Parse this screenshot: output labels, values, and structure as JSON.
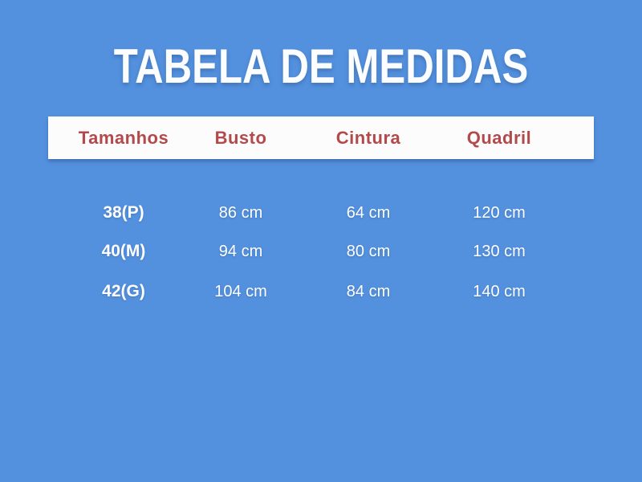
{
  "title": "TABELA DE MEDIDAS",
  "chart_data": {
    "type": "table",
    "title": "TABELA DE MEDIDAS",
    "columns": [
      "Tamanhos",
      "Busto",
      "Cintura",
      "Quadril"
    ],
    "rows": [
      [
        "38(P)",
        "86 cm",
        "64 cm",
        "120 cm"
      ],
      [
        "40(M)",
        "94 cm",
        "80 cm",
        "130 cm"
      ],
      [
        "42(G)",
        "104 cm",
        "84 cm",
        "140 cm"
      ]
    ],
    "layout": {
      "header_style": "white bar with red bold labels",
      "body_style": "white text on blue background, no gridlines"
    }
  },
  "colors": {
    "background": "#5390DD",
    "header_bar": "#FCFCFC",
    "header_text": "#B3494B",
    "body_text": "#FFFFFF"
  }
}
